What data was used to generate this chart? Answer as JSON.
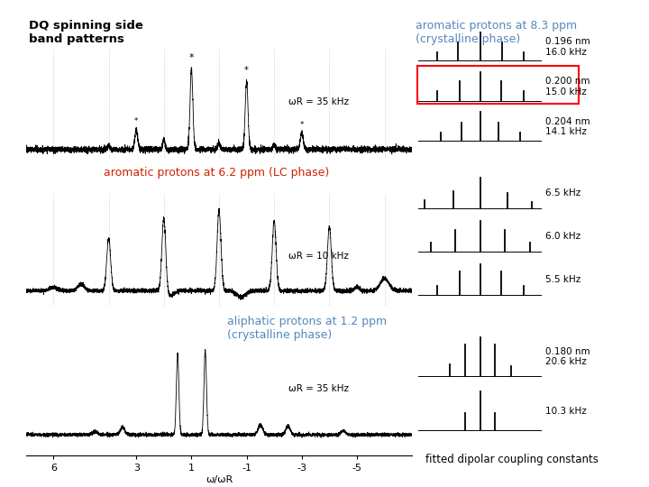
{
  "title_line1": "DQ spinning side",
  "title_line2": "band patterns",
  "bg_color": "#ffffff",
  "text_color": "#000000",
  "blue_color": "#5588bb",
  "red_color": "#cc2200",
  "panel1_label": "aromatic protons at 8.3 ppm\n(crystalline phase)",
  "panel1_wr": "ωR = 35 kHz",
  "panel1_right_labels": [
    "0.196 nm\n16.0 kHz",
    "0.200 nm\n15.0 kHz",
    "0.204 nm\n14.1 kHz"
  ],
  "panel1_highlighted": 1,
  "panel2_label": "aromatic protons at 6.2 ppm (LC phase)",
  "panel2_wr": "ωR = 10 kHz",
  "panel2_right_labels": [
    "6.5 kHz",
    "6.0 kHz",
    "5.5 kHz"
  ],
  "panel3_label": "aliphatic protons at 1.2 ppm\n(crystalline phase)",
  "panel3_wr": "ωR = 35 kHz",
  "panel3_right_labels": [
    "0.180 nm\n20.6 kHz",
    "10.3 kHz"
  ],
  "xlabel": "ω/ωR",
  "footer": "fitted dipolar coupling constants"
}
